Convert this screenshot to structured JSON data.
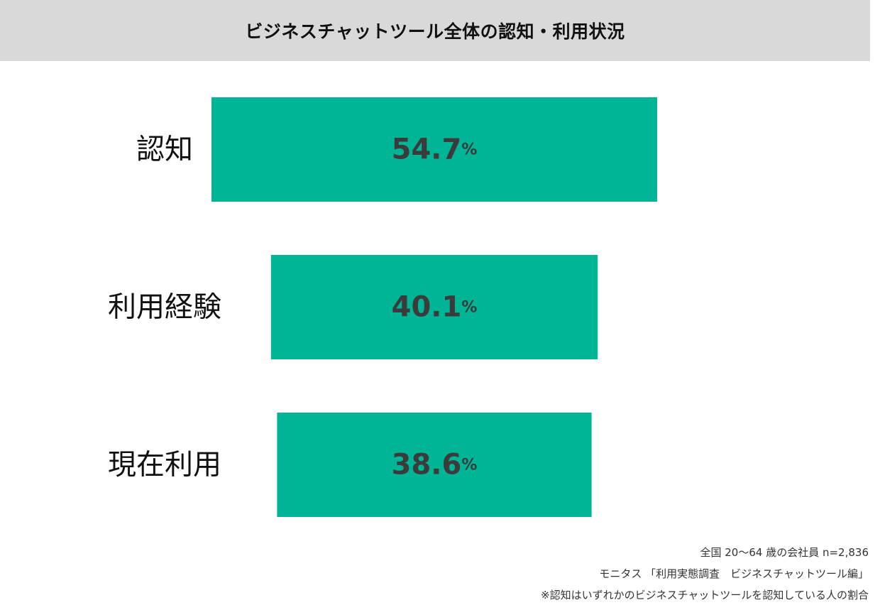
{
  "chart_data": {
    "type": "bar",
    "orientation": "horizontal",
    "title": "ビジネスチャットツール全体の認知・利用状況",
    "categories": [
      "認知",
      "利用経験",
      "現在利用"
    ],
    "values": [
      54.7,
      40.1,
      38.6
    ],
    "value_labels": [
      "54.7",
      "40.1",
      "38.6"
    ],
    "unit": "%",
    "bar_color": "#00b496",
    "alignment": "centered",
    "grid": false,
    "legend": "none"
  },
  "notes": [
    "全国 20～64 歳の会社員 n=2,836",
    "モニタス 「利用実態調査　ビジネスチャットツール編」",
    "※認知はいずれかのビジネスチャットツールを認知している人の割合"
  ]
}
